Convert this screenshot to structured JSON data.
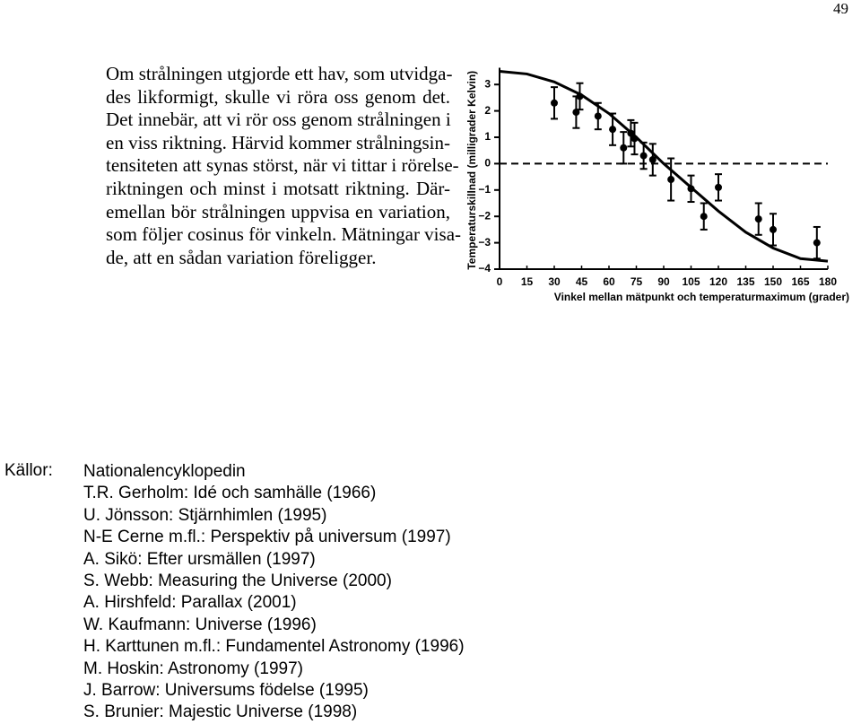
{
  "page_number": "49",
  "paragraph": [
    "Om strålningen utgjorde ett hav, som utvidga-",
    "des likformigt, skulle vi röra oss genom det.",
    "Det innebär, att vi rör oss genom strålningen i",
    "en viss riktning. Härvid kommer strålningsin-",
    "tensiteten att synas störst, när vi tittar i rörelse-",
    "riktningen och minst i motsatt riktning. Där-",
    "emellan bör strålningen uppvisa en variation,",
    "som följer cosinus för vinkeln. Mätningar visa-",
    "de, att en sådan variation föreligger."
  ],
  "chart_data": {
    "type": "scatter",
    "x_label": "Vinkel mellan mätpunkt och temperaturmaximum (grader)",
    "y_label": "Temperaturskillnad (milligrader Kelvin)",
    "xlim": [
      0,
      180
    ],
    "ylim": [
      -4,
      3.5
    ],
    "xticks": [
      0,
      15,
      30,
      45,
      60,
      75,
      90,
      105,
      120,
      135,
      150,
      165,
      180
    ],
    "yticks": [
      {
        "value": -4,
        "label": "−4"
      },
      {
        "value": -3,
        "label": "−3"
      },
      {
        "value": -2,
        "label": "−2"
      },
      {
        "value": -1,
        "label": "−1"
      },
      0,
      1,
      2,
      3
    ],
    "hline": 0,
    "series": [
      {
        "type": "scatter",
        "color": "#000000",
        "x": [
          30,
          42,
          44,
          54,
          62,
          68,
          72,
          74,
          79,
          84,
          94,
          105,
          112,
          120,
          142,
          150,
          174
        ],
        "values": [
          2.3,
          1.95,
          2.55,
          1.8,
          1.3,
          0.6,
          1.15,
          0.95,
          0.3,
          0.15,
          -0.6,
          -0.95,
          -2.0,
          -0.9,
          -2.1,
          -2.5,
          -3.0
        ],
        "errors": [
          0.6,
          0.6,
          0.5,
          0.5,
          0.6,
          0.6,
          0.5,
          0.6,
          0.5,
          0.6,
          0.8,
          0.5,
          0.5,
          0.5,
          0.6,
          0.6,
          0.6
        ]
      },
      {
        "type": "line",
        "color": "#000000",
        "x": [
          0,
          15,
          30,
          45,
          60,
          75,
          90,
          105,
          120,
          135,
          150,
          165,
          180
        ],
        "values": [
          3.5,
          3.4,
          3.1,
          2.6,
          1.9,
          1.0,
          0.0,
          -0.9,
          -1.8,
          -2.6,
          -3.2,
          -3.6,
          -3.7
        ]
      }
    ]
  },
  "sources": {
    "label": "Källor:",
    "items": [
      "Nationalencyklopedin",
      "T.R. Gerholm: Idé och samhälle (1966)",
      "U. Jönsson: Stjärnhimlen (1995)",
      "N-E Cerne m.fl.: Perspektiv på universum (1997)",
      "A. Sikö: Efter ursmällen (1997)",
      "S. Webb: Measuring the Universe (2000)",
      "A. Hirshfeld: Parallax (2001)",
      "W. Kaufmann: Universe (1996)",
      "H. Karttunen m.fl.: Fundamentel Astronomy (1996)",
      "M. Hoskin: Astronomy (1997)",
      "J. Barrow: Universums födelse (1995)",
      "S. Brunier: Majestic Universe (1998)"
    ]
  }
}
